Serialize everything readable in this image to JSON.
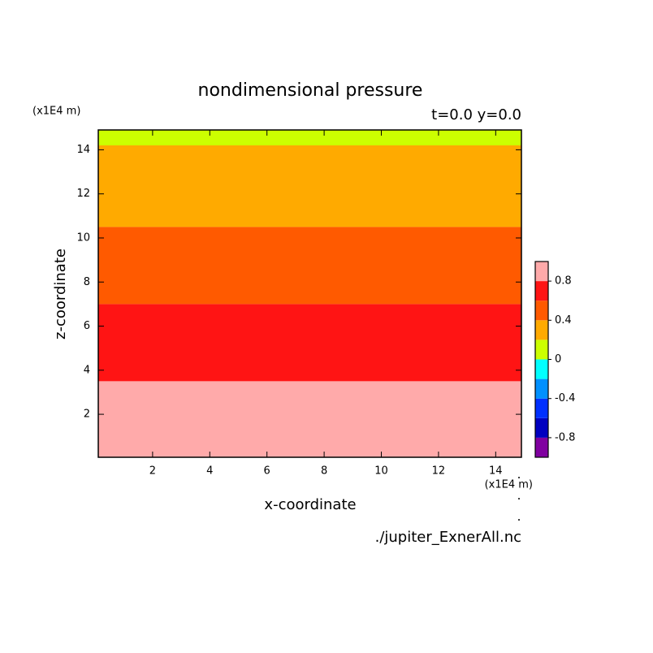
{
  "chart_data": {
    "type": "contour",
    "title": "nondimensional pressure",
    "subtitle": "t=0.0 y=0.0",
    "xlabel": "x-coordinate",
    "ylabel": "z-coordinate",
    "x_units": "(x1E4 m)",
    "y_units": "(x1E4 m)",
    "source": "./jupiter_ExnerAll.nc",
    "xlim": [
      0.1,
      14.9
    ],
    "ylim": [
      0.05,
      14.9
    ],
    "xticks": [
      2,
      4,
      6,
      8,
      10,
      12,
      14
    ],
    "yticks": [
      2,
      4,
      6,
      8,
      10,
      12,
      14
    ],
    "boundaries": [
      3.5,
      7,
      10.5,
      14.2
    ],
    "band_levels": [
      0.8,
      0.6,
      0.4,
      0.2,
      0
    ],
    "colorbar": {
      "levels": [
        -1,
        -0.8,
        -0.6,
        -0.4,
        -0.2,
        0,
        0.2,
        0.4,
        0.6,
        0.8,
        1
      ],
      "colors": [
        "#8000a0",
        "#0000c0",
        "#0030ff",
        "#0090ff",
        "#00ffff",
        "#ccff00",
        "#ffaa00",
        "#ff5a00",
        "#ff1414",
        "#ffaaaa"
      ],
      "ticks": [
        0.8,
        0.4,
        0,
        -0.4,
        -0.8
      ]
    }
  }
}
